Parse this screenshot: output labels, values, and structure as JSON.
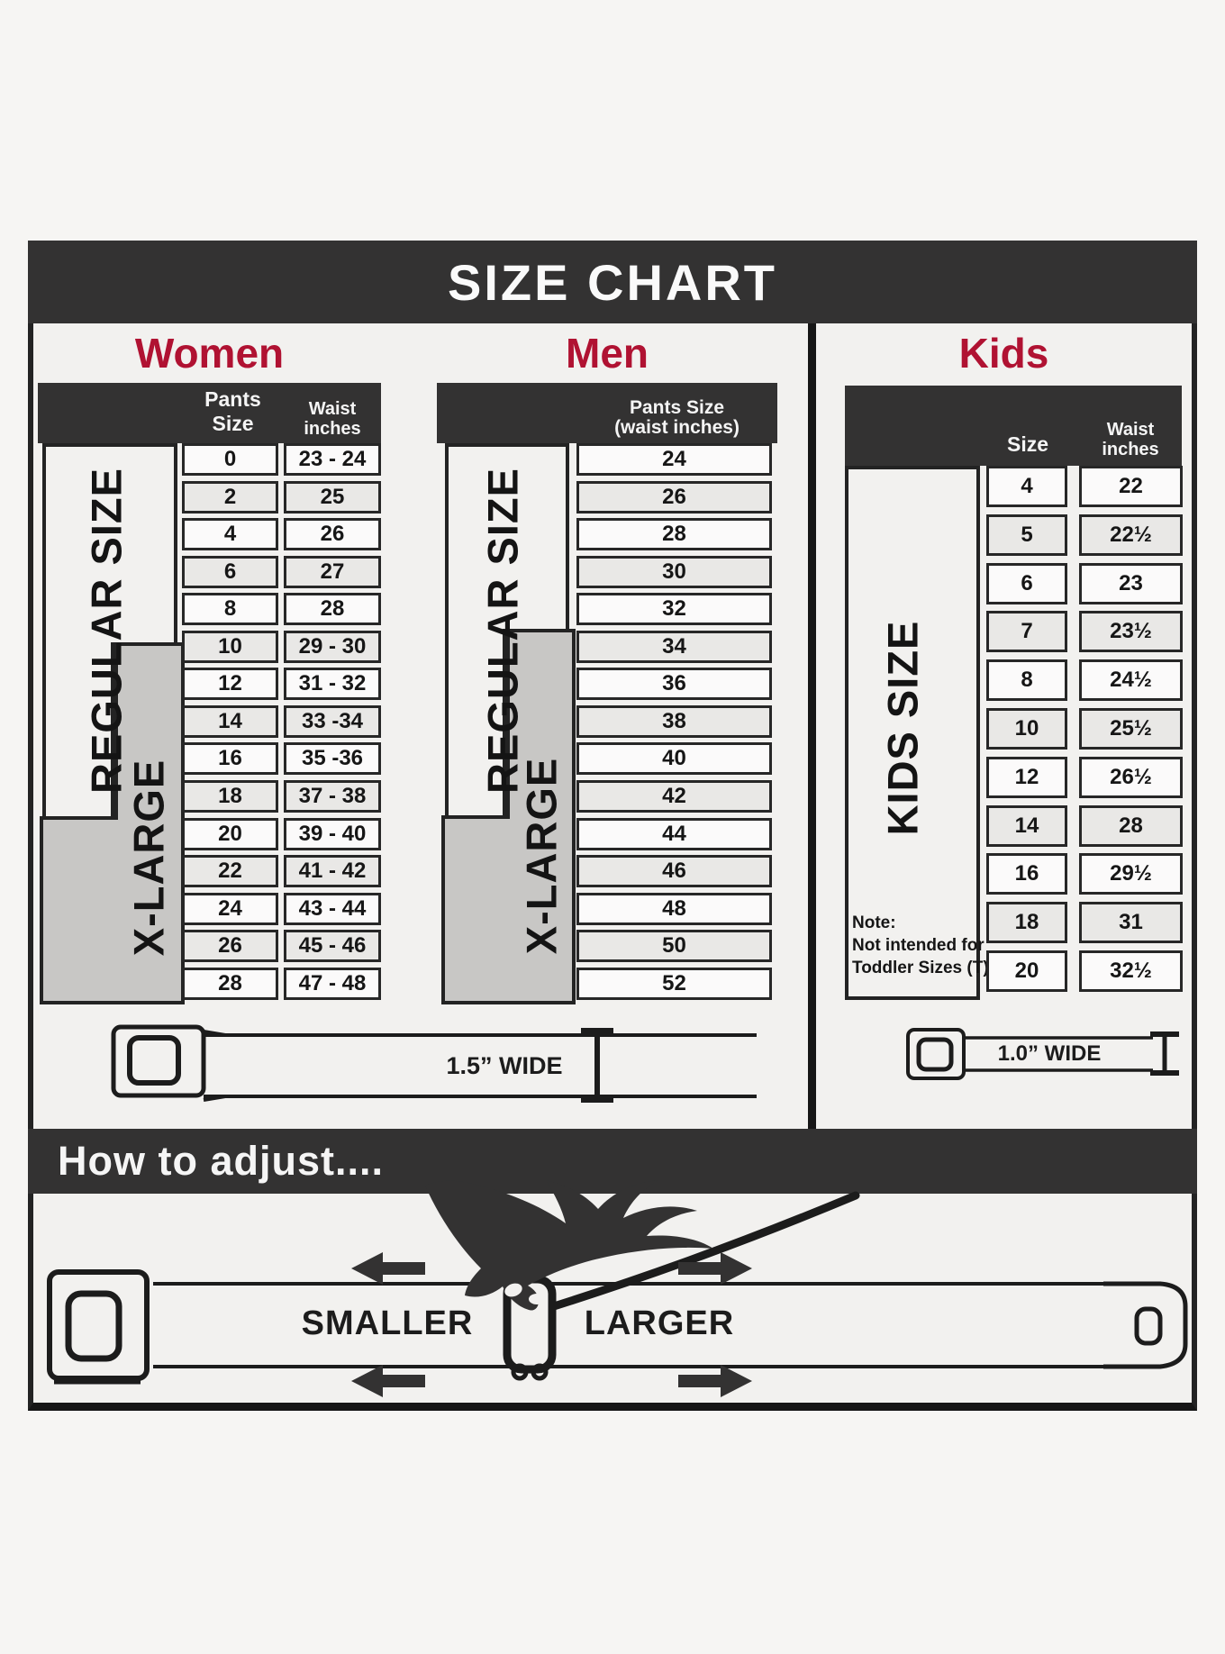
{
  "header": {
    "title": "SIZE CHART"
  },
  "colors": {
    "accent_crimson": "#b01232",
    "bar_dark": "#333232",
    "xlarge_gray": "#c8c7c5",
    "panel_bg": "#f2f1ef"
  },
  "women": {
    "title": "Women",
    "col1_header": "Pants Size",
    "col2_header": [
      "Waist",
      "inches"
    ],
    "regular_label": "REGULAR SIZE",
    "xlarge_label": "X-LARGE",
    "rows": [
      {
        "size": "0",
        "waist": "23 - 24"
      },
      {
        "size": "2",
        "waist": "25"
      },
      {
        "size": "4",
        "waist": "26"
      },
      {
        "size": "6",
        "waist": "27"
      },
      {
        "size": "8",
        "waist": "28"
      },
      {
        "size": "10",
        "waist": "29 - 30"
      },
      {
        "size": "12",
        "waist": "31 - 32"
      },
      {
        "size": "14",
        "waist": "33 -34"
      },
      {
        "size": "16",
        "waist": "35 -36"
      },
      {
        "size": "18",
        "waist": "37 - 38"
      },
      {
        "size": "20",
        "waist": "39 - 40"
      },
      {
        "size": "22",
        "waist": "41 - 42"
      },
      {
        "size": "24",
        "waist": "43 - 44"
      },
      {
        "size": "26",
        "waist": "45 - 46"
      },
      {
        "size": "28",
        "waist": "47 - 48"
      }
    ],
    "belt_caption": "1.5” WIDE"
  },
  "men": {
    "title": "Men",
    "col_header": [
      "Pants Size",
      "(waist inches)"
    ],
    "regular_label": "REGULAR SIZE",
    "xlarge_label": "X-LARGE",
    "rows": [
      "24",
      "26",
      "28",
      "30",
      "32",
      "34",
      "36",
      "38",
      "40",
      "42",
      "44",
      "46",
      "48",
      "50",
      "52"
    ]
  },
  "kids": {
    "title": "Kids",
    "col1_header": "Size",
    "col2_header": [
      "Waist",
      "inches"
    ],
    "side_label": "KIDS SIZE",
    "note": [
      "Note:",
      "Not intended for",
      "Toddler Sizes (T)"
    ],
    "rows": [
      {
        "size": "4",
        "waist": "22"
      },
      {
        "size": "5",
        "waist": "22½"
      },
      {
        "size": "6",
        "waist": "23"
      },
      {
        "size": "7",
        "waist": "23½"
      },
      {
        "size": "8",
        "waist": "24½"
      },
      {
        "size": "10",
        "waist": "25½"
      },
      {
        "size": "12",
        "waist": "26½"
      },
      {
        "size": "14",
        "waist": "28"
      },
      {
        "size": "16",
        "waist": "29½"
      },
      {
        "size": "18",
        "waist": "31"
      },
      {
        "size": "20",
        "waist": "32½"
      }
    ],
    "belt_caption": "1.0” WIDE"
  },
  "adjust": {
    "title": "How to adjust....",
    "smaller": "SMALLER",
    "larger": "LARGER"
  }
}
